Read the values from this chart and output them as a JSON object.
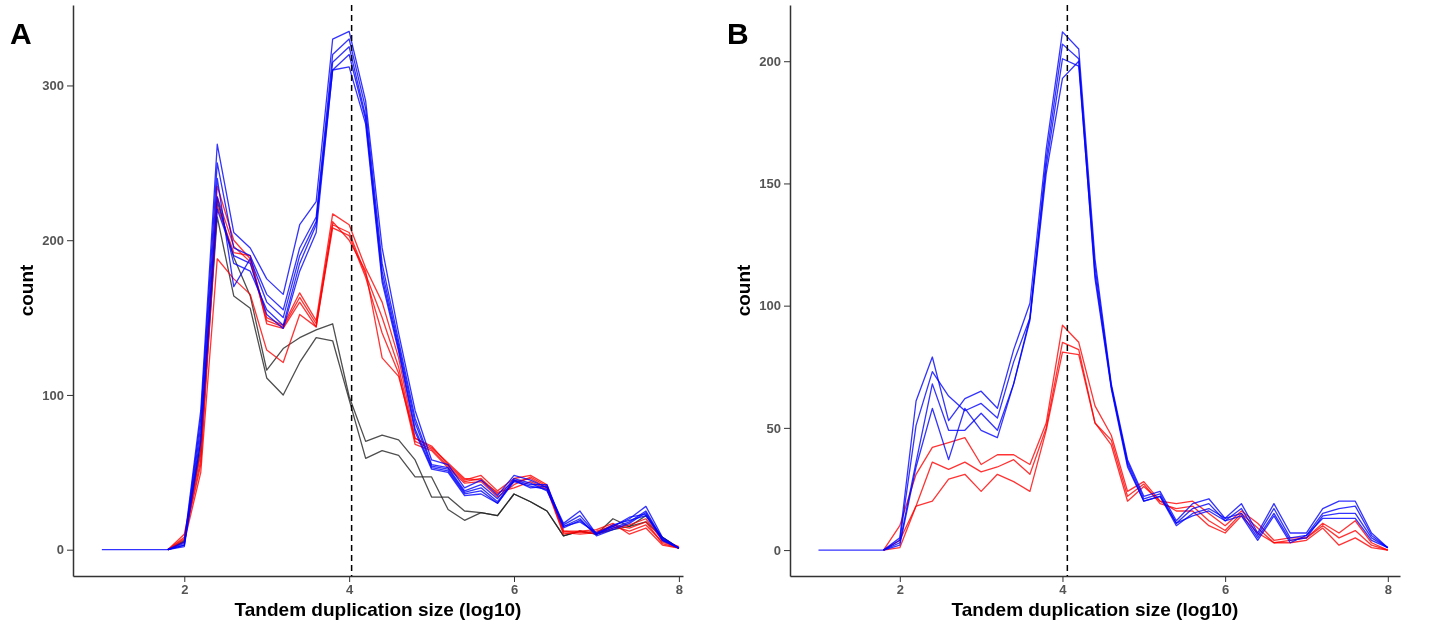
{
  "chart_data": [
    {
      "type": "line",
      "title": "A",
      "xlabel": "Tandem duplication size (log10)",
      "ylabel": "count",
      "x": [
        1.0,
        1.2,
        1.4,
        1.6,
        1.8,
        2.0,
        2.2,
        2.4,
        2.6,
        2.8,
        3.0,
        3.2,
        3.4,
        3.6,
        3.8,
        4.0,
        4.2,
        4.4,
        4.6,
        4.8,
        5.0,
        5.2,
        5.4,
        5.6,
        5.8,
        6.0,
        6.2,
        6.4,
        6.6,
        6.8,
        7.0,
        7.2,
        7.4,
        7.6,
        7.8,
        8.0
      ],
      "xlim": [
        0.65,
        8.05
      ],
      "xticks": [
        2,
        4,
        6,
        8
      ],
      "ylim": [
        -17,
        352
      ],
      "yticks": [
        0,
        100,
        200,
        300
      ],
      "ref_lines": [
        {
          "axis": "x",
          "value": 4.03,
          "color": "#000000",
          "line_style": "dashed"
        }
      ],
      "series": [
        {
          "color": "#222222",
          "values": [
            null,
            null,
            null,
            null,
            0,
            6,
            70,
            225,
            189,
            164,
            116,
            130,
            137,
            142,
            146,
            99,
            70,
            74,
            71,
            58,
            34,
            34,
            25,
            24,
            22,
            36,
            31,
            25,
            9,
            12,
            10,
            20,
            15,
            22,
            8,
            1
          ]
        },
        {
          "color": "#222222",
          "values": [
            null,
            null,
            null,
            null,
            0,
            5,
            65,
            215,
            164,
            156,
            111,
            100,
            121,
            137,
            135,
            97,
            59,
            64,
            61,
            47,
            47,
            26,
            19,
            24,
            22,
            36,
            31,
            25,
            9,
            12,
            10,
            13,
            15,
            18,
            8,
            1
          ]
        },
        {
          "color": "#ff0000",
          "values": [
            null,
            null,
            null,
            null,
            0,
            10,
            62,
            235,
            200,
            188,
            150,
            145,
            166,
            148,
            217,
            210,
            182,
            160,
            124,
            72,
            67,
            55,
            45,
            48,
            38,
            46,
            48,
            42,
            12,
            12,
            10,
            14,
            16,
            20,
            6,
            2
          ]
        },
        {
          "color": "#ff0000",
          "values": [
            null,
            null,
            null,
            null,
            0,
            8,
            58,
            228,
            196,
            186,
            148,
            144,
            163,
            146,
            210,
            205,
            178,
            150,
            118,
            70,
            65,
            54,
            44,
            46,
            36,
            44,
            46,
            40,
            11,
            10,
            11,
            16,
            14,
            18,
            4,
            1
          ]
        },
        {
          "color": "#ff0000",
          "values": [
            null,
            null,
            null,
            null,
            0,
            7,
            55,
            222,
            192,
            190,
            146,
            143,
            160,
            144,
            208,
            203,
            176,
            140,
            114,
            68,
            64,
            53,
            43,
            44,
            34,
            42,
            47,
            41,
            12,
            11,
            12,
            15,
            12,
            16,
            5,
            1
          ]
        },
        {
          "color": "#ff0000",
          "values": [
            null,
            null,
            null,
            null,
            0,
            5,
            50,
            188,
            175,
            165,
            129,
            121,
            152,
            144,
            212,
            200,
            180,
            124,
            112,
            72,
            66,
            56,
            46,
            45,
            37,
            40,
            44,
            39,
            10,
            12,
            13,
            17,
            10,
            14,
            3,
            1
          ]
        },
        {
          "color": "#0000ff",
          "values": [
            null,
            null,
            null,
            null,
            0,
            5,
            90,
            262,
            205,
            195,
            175,
            165,
            210,
            225,
            330,
            335,
            290,
            195,
            140,
            90,
            58,
            55,
            40,
            45,
            35,
            48,
            45,
            40,
            17,
            25,
            10,
            15,
            20,
            28,
            8,
            1
          ]
        },
        {
          "color": "#0000ff",
          "values": [
            null,
            null,
            null,
            null,
            0,
            4,
            85,
            250,
            195,
            190,
            165,
            155,
            195,
            215,
            320,
            330,
            285,
            185,
            135,
            85,
            55,
            53,
            38,
            42,
            33,
            46,
            43,
            38,
            16,
            22,
            10,
            14,
            18,
            25,
            7,
            1
          ]
        },
        {
          "color": "#0000ff",
          "values": [
            null,
            null,
            null,
            null,
            0,
            3,
            80,
            240,
            170,
            188,
            160,
            150,
            190,
            212,
            315,
            325,
            280,
            180,
            132,
            82,
            54,
            52,
            37,
            40,
            31,
            45,
            42,
            42,
            15,
            20,
            9,
            13,
            17,
            24,
            6,
            1
          ]
        },
        {
          "color": "#0000ff",
          "values": [
            null,
            null,
            null,
            null,
            0,
            3,
            75,
            228,
            185,
            180,
            155,
            145,
            185,
            210,
            310,
            320,
            278,
            176,
            130,
            78,
            53,
            51,
            36,
            38,
            30,
            44,
            41,
            39,
            14,
            19,
            10,
            16,
            19,
            22,
            6,
            1
          ]
        },
        {
          "color": "#0000ff",
          "values": [
            0,
            0,
            0,
            0,
            0,
            2,
            70,
            220,
            190,
            185,
            152,
            143,
            180,
            205,
            310,
            312,
            275,
            173,
            128,
            76,
            52,
            50,
            35,
            36,
            30,
            45,
            40,
            41,
            15,
            18,
            11,
            15,
            21,
            23,
            7,
            1
          ]
        }
      ]
    },
    {
      "type": "line",
      "title": "B",
      "xlabel": "Tandem duplication size (log10)",
      "ylabel": "count",
      "x": [
        1.0,
        1.2,
        1.4,
        1.6,
        1.8,
        2.0,
        2.2,
        2.4,
        2.6,
        2.8,
        3.0,
        3.2,
        3.4,
        3.6,
        3.8,
        4.0,
        4.2,
        4.4,
        4.6,
        4.8,
        5.0,
        5.2,
        5.4,
        5.6,
        5.8,
        6.0,
        6.2,
        6.4,
        6.6,
        6.8,
        7.0,
        7.2,
        7.4,
        7.6,
        7.8,
        8.0
      ],
      "xlim": [
        0.65,
        8.15
      ],
      "xticks": [
        2,
        4,
        6,
        8
      ],
      "ylim": [
        -10.6,
        223
      ],
      "yticks": [
        0,
        50,
        100,
        150,
        200
      ],
      "ref_lines": [
        {
          "axis": "x",
          "value": 4.06,
          "color": "#000000",
          "line_style": "dashed"
        }
      ],
      "series": [
        {
          "color": "#ff0000",
          "values": [
            null,
            null,
            null,
            null,
            0,
            10,
            31,
            42,
            44,
            46,
            35,
            39,
            39,
            35,
            52,
            92,
            85,
            59,
            47,
            24,
            28,
            20,
            19,
            20,
            15,
            10,
            16,
            11,
            4,
            5,
            5,
            11,
            7,
            12,
            3,
            0
          ]
        },
        {
          "color": "#ff0000",
          "values": [
            null,
            null,
            null,
            null,
            0,
            4,
            18,
            36,
            33,
            36,
            32,
            34,
            37,
            31,
            50,
            85,
            82,
            52,
            45,
            22,
            27,
            19,
            17,
            18,
            12,
            8,
            15,
            9,
            3,
            4,
            5,
            10,
            5,
            8,
            2,
            0
          ]
        },
        {
          "color": "#ff0000",
          "values": [
            null,
            null,
            null,
            null,
            0,
            1,
            18,
            20,
            29,
            31,
            24,
            31,
            28,
            24,
            49,
            81,
            80,
            52,
            43,
            20,
            26,
            20,
            16,
            16,
            10,
            7,
            14,
            7,
            3,
            3,
            4,
            9,
            2,
            5,
            1,
            0
          ]
        },
        {
          "color": "#0000ff",
          "values": [
            null,
            null,
            null,
            null,
            0,
            5,
            61,
            79,
            53,
            62,
            65,
            58,
            82,
            101,
            164,
            212,
            205,
            119,
            68,
            37,
            22,
            24,
            12,
            19,
            21,
            13,
            19,
            7,
            19,
            7,
            7,
            17,
            20,
            20,
            7,
            1
          ]
        },
        {
          "color": "#0000ff",
          "values": [
            null,
            null,
            null,
            null,
            0,
            4,
            51,
            73,
            63,
            57,
            60,
            54,
            77,
            95,
            160,
            207,
            201,
            116,
            67,
            36,
            21,
            23,
            11,
            17,
            19,
            12,
            17,
            6,
            17,
            5,
            6,
            15,
            17,
            18,
            6,
            1
          ]
        },
        {
          "color": "#0000ff",
          "values": [
            null,
            null,
            null,
            null,
            0,
            3,
            36,
            68,
            49,
            49,
            56,
            49,
            68,
            95,
            157,
            201,
            198,
            113,
            67,
            35,
            20,
            22,
            10,
            15,
            17,
            13,
            15,
            5,
            15,
            4,
            5,
            14,
            15,
            15,
            5,
            1
          ]
        },
        {
          "color": "#0000ff",
          "values": [
            0,
            0,
            0,
            0,
            0,
            2,
            34,
            58,
            37,
            58,
            49,
            46,
            68,
            94,
            154,
            193,
            200,
            111,
            66,
            34,
            20,
            22,
            11,
            14,
            16,
            12,
            14,
            4,
            14,
            3,
            6,
            13,
            13,
            13,
            4,
            1
          ]
        }
      ]
    }
  ]
}
